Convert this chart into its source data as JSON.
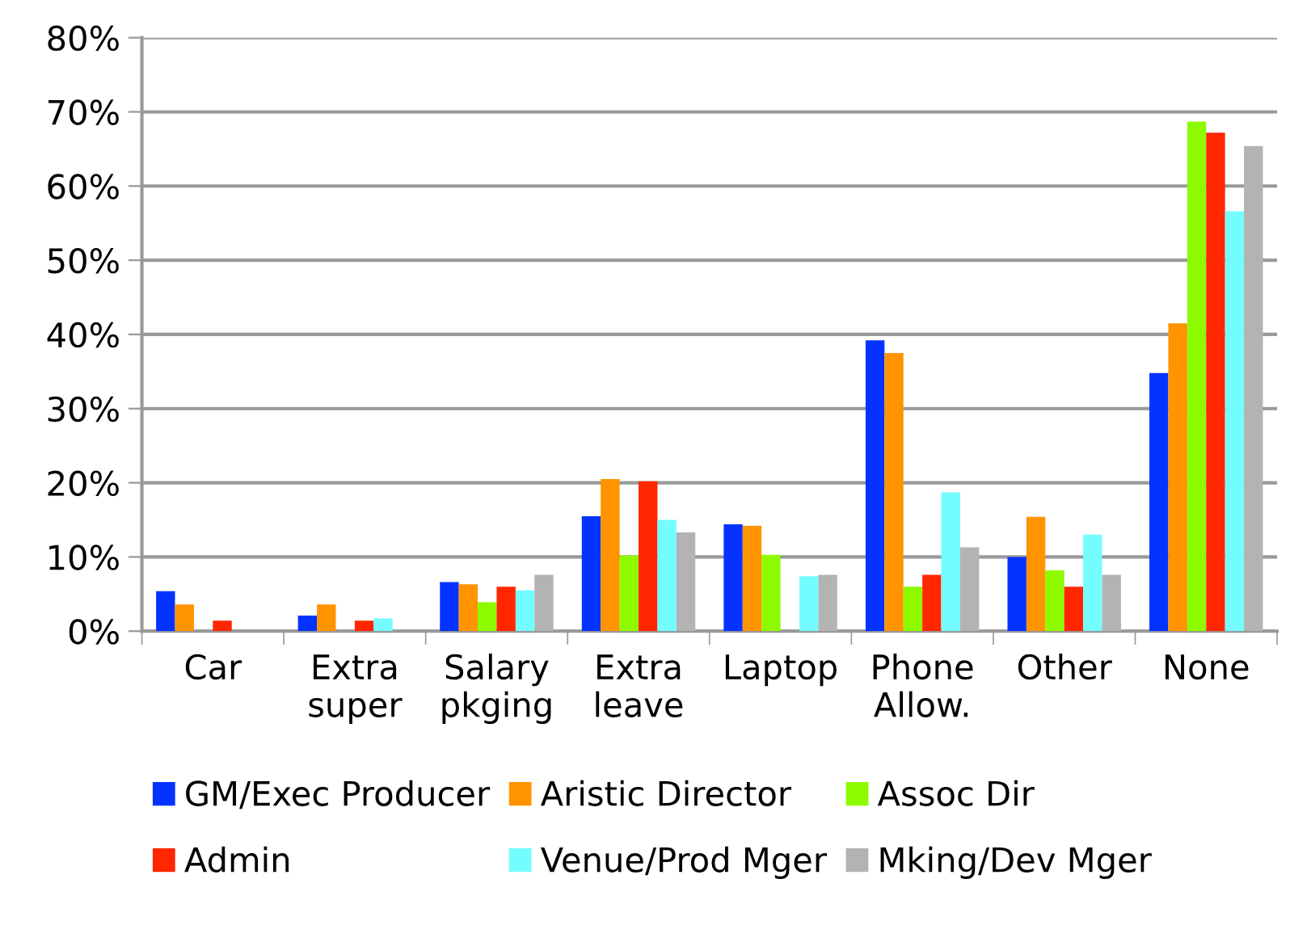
{
  "chart_data": {
    "type": "bar",
    "categories": [
      "Car",
      "Extra\nsuper",
      "Salary\npkging",
      "Extra\nleave",
      "Laptop",
      "Phone\nAllow.",
      "Other",
      "None"
    ],
    "series": [
      {
        "name": "GM/Exec Producer",
        "color": "#0433ff",
        "values": [
          5.4,
          2.1,
          6.6,
          15.5,
          14.4,
          39.2,
          10.0,
          34.8
        ]
      },
      {
        "name": "Aristic Director",
        "color": "#ff9300",
        "values": [
          3.6,
          3.6,
          6.3,
          20.5,
          14.2,
          37.5,
          15.4,
          41.5
        ]
      },
      {
        "name": "Assoc Dir",
        "color": "#8efa00",
        "values": [
          null,
          null,
          3.9,
          10.2,
          10.3,
          6.0,
          8.2,
          68.7
        ]
      },
      {
        "name": "Admin",
        "color": "#ff2600",
        "values": [
          1.4,
          1.4,
          6.0,
          20.2,
          null,
          7.6,
          6.0,
          67.2
        ]
      },
      {
        "name": "Venue/Prod Mger",
        "color": "#73fdff",
        "values": [
          null,
          1.7,
          5.5,
          15.0,
          7.4,
          18.7,
          13.0,
          56.6
        ]
      },
      {
        "name": "Mking/Dev Mger",
        "color": "#b3b3b3",
        "values": [
          null,
          null,
          7.6,
          13.3,
          7.6,
          11.3,
          7.6,
          65.4
        ]
      }
    ],
    "ylim": [
      0,
      80
    ],
    "yticks": [
      {
        "value": 0,
        "label": "0%"
      },
      {
        "value": 10,
        "label": "10%"
      },
      {
        "value": 20,
        "label": "20%"
      },
      {
        "value": 30,
        "label": "30%"
      },
      {
        "value": 40,
        "label": "40%"
      },
      {
        "value": 50,
        "label": "50%"
      },
      {
        "value": 60,
        "label": "60%"
      },
      {
        "value": 70,
        "label": "70%"
      },
      {
        "value": 80,
        "label": "80%"
      }
    ],
    "grid": "y",
    "legend": "bottom"
  }
}
